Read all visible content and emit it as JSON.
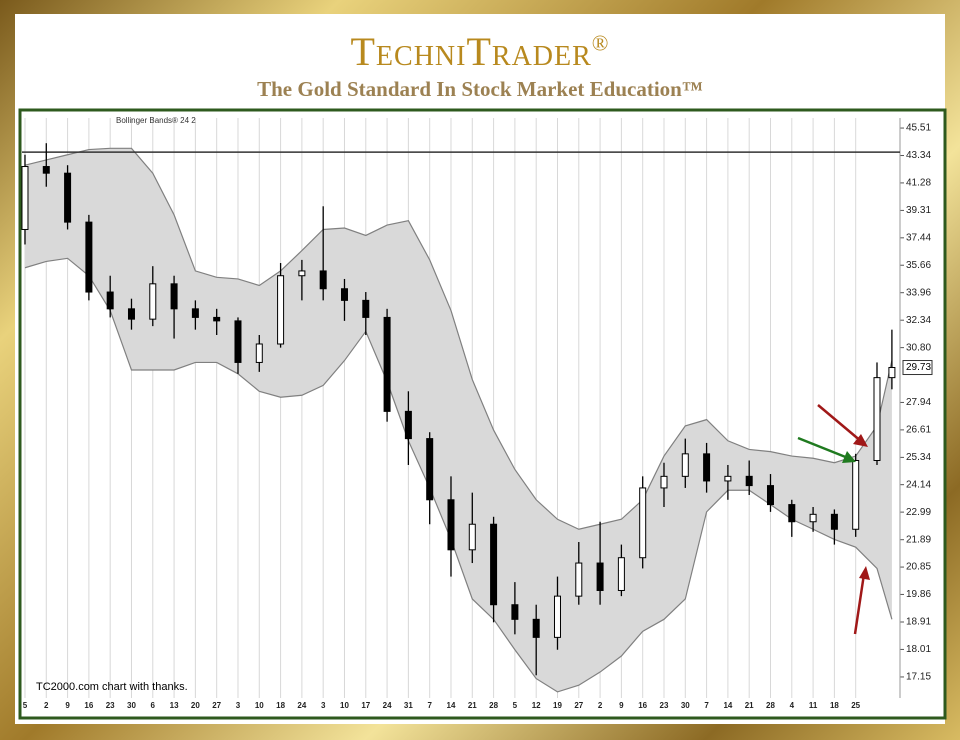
{
  "header": {
    "brand": "TechniTrader",
    "registered": "®",
    "tagline": "The Gold Standard In Stock Market Education™"
  },
  "chart_data": {
    "type": "candlestick",
    "indicator_label": "Bollinger Bands® 24 2",
    "footnote": "TC2000.com  chart with thanks.",
    "log_scale": true,
    "grid": true,
    "up_color": "#ffffff",
    "down_color": "#000000",
    "band_fill": "#d9d9d9",
    "band_stroke": "#808080",
    "horizontal_line": 43.6,
    "last_value": 29.73,
    "xlim": [
      -0.14,
      41.08
    ],
    "ylim": [
      16.52,
      46.33
    ],
    "xticks": [
      {
        "value": 0,
        "label": "5"
      },
      {
        "value": 1,
        "label": "2"
      },
      {
        "value": 2,
        "label": "9"
      },
      {
        "value": 3,
        "label": "16"
      },
      {
        "value": 4,
        "label": "23"
      },
      {
        "value": 5,
        "label": "30"
      },
      {
        "value": 6,
        "label": "6"
      },
      {
        "value": 7,
        "label": "13"
      },
      {
        "value": 8,
        "label": "20"
      },
      {
        "value": 9,
        "label": "27"
      },
      {
        "value": 10,
        "label": "3"
      },
      {
        "value": 11,
        "label": "10"
      },
      {
        "value": 12,
        "label": "18"
      },
      {
        "value": 13,
        "label": "24"
      },
      {
        "value": 14,
        "label": "3"
      },
      {
        "value": 15,
        "label": "10"
      },
      {
        "value": 16,
        "label": "17"
      },
      {
        "value": 17,
        "label": "24"
      },
      {
        "value": 18,
        "label": "31"
      },
      {
        "value": 19,
        "label": "7"
      },
      {
        "value": 20,
        "label": "14"
      },
      {
        "value": 21,
        "label": "21"
      },
      {
        "value": 22,
        "label": "28"
      },
      {
        "value": 23,
        "label": "5"
      },
      {
        "value": 24,
        "label": "12"
      },
      {
        "value": 25,
        "label": "19"
      },
      {
        "value": 26,
        "label": "27"
      },
      {
        "value": 27,
        "label": "2"
      },
      {
        "value": 28,
        "label": "9"
      },
      {
        "value": 29,
        "label": "16"
      },
      {
        "value": 30,
        "label": "23"
      },
      {
        "value": 31,
        "label": "30"
      },
      {
        "value": 32,
        "label": "7"
      },
      {
        "value": 33,
        "label": "14"
      },
      {
        "value": 34,
        "label": "21"
      },
      {
        "value": 35,
        "label": "28"
      },
      {
        "value": 36,
        "label": "4"
      },
      {
        "value": 37,
        "label": "11"
      },
      {
        "value": 38,
        "label": "18"
      },
      {
        "value": 39,
        "label": "25"
      }
    ],
    "yticks": [
      45.51,
      43.34,
      41.28,
      39.31,
      37.44,
      35.66,
      33.96,
      32.34,
      {
        "value": 30.8,
        "label": "30.80"
      },
      27.94,
      26.61,
      25.34,
      24.14,
      22.99,
      21.89,
      20.85,
      19.86,
      18.91,
      18.01,
      17.15
    ],
    "x": [
      0,
      1,
      2,
      3,
      4,
      5,
      6,
      7,
      8,
      9,
      10,
      11,
      12,
      13,
      14,
      15,
      16,
      17,
      18,
      19,
      20,
      21,
      22,
      23,
      24,
      25,
      26,
      27,
      28,
      29,
      30,
      31,
      32,
      33,
      34,
      35,
      36,
      37,
      38,
      39,
      40,
      40.7
    ],
    "open": [
      38,
      42.5,
      42,
      38.5,
      34,
      33,
      32.4,
      34.5,
      33,
      32.5,
      32.3,
      30,
      31,
      35,
      35.3,
      34.2,
      33.5,
      32.5,
      27.5,
      26.2,
      23.5,
      21.5,
      22.5,
      19.5,
      19,
      18.4,
      19.8,
      21,
      20,
      21.2,
      24,
      24.5,
      25.5,
      24.3,
      24.5,
      24.1,
      23.3,
      22.6,
      22.9,
      22.3,
      25.2,
      29.2
    ],
    "high": [
      43.4,
      44.3,
      42.6,
      39,
      35,
      33.6,
      35.6,
      35,
      33.5,
      33,
      32.5,
      31.5,
      35.8,
      36,
      39.6,
      34.8,
      34,
      33,
      28.5,
      26.5,
      24.5,
      23.8,
      22.8,
      20.3,
      19.5,
      20.5,
      21.8,
      22.6,
      21.7,
      24.5,
      25.1,
      26.2,
      26,
      25,
      25.2,
      24.6,
      23.5,
      23.2,
      23.1,
      25.5,
      30,
      31.8
    ],
    "low": [
      37,
      41,
      38,
      33.5,
      32.5,
      31.8,
      32,
      31.3,
      31.8,
      31.5,
      29.4,
      29.5,
      30.8,
      33.5,
      33.5,
      32.3,
      31.5,
      27,
      25,
      22.5,
      20.5,
      21,
      18.9,
      18.5,
      17.2,
      18,
      19.5,
      19.5,
      19.8,
      20.8,
      23.2,
      24,
      23.8,
      23.5,
      23.7,
      23,
      22,
      22.2,
      21.7,
      22,
      25,
      28.6
    ],
    "close": [
      42.5,
      42,
      38.5,
      34,
      33,
      32.4,
      34.5,
      33,
      32.5,
      32.3,
      30,
      31,
      35,
      35.3,
      34.2,
      33.5,
      32.5,
      27.5,
      26.2,
      23.5,
      21.5,
      22.5,
      19.5,
      19,
      18.4,
      19.8,
      21,
      20,
      21.2,
      24,
      24.5,
      25.5,
      24.3,
      24.5,
      24.1,
      23.3,
      22.6,
      22.9,
      22.3,
      25.2,
      29.2,
      29.73
    ],
    "upper_band": [
      42.6,
      43.0,
      43.4,
      43.8,
      43.9,
      43.9,
      42.0,
      39.0,
      35.3,
      34.9,
      34.8,
      34.4,
      35.3,
      36.6,
      38.0,
      38.1,
      37.6,
      38.3,
      38.6,
      36.0,
      32.9,
      29.1,
      26.6,
      24.8,
      23.5,
      22.7,
      22.3,
      22.5,
      22.7,
      23.5,
      25.4,
      26.8,
      27.1,
      26.1,
      25.7,
      25.6,
      25.4,
      25.3,
      25.1,
      25.4,
      26.8,
      30.1
    ],
    "lower_band": [
      35.5,
      35.9,
      36.1,
      35.0,
      32.9,
      29.6,
      29.6,
      29.6,
      30.0,
      30.0,
      29.4,
      28.5,
      28.2,
      28.3,
      28.8,
      30.1,
      31.7,
      29.0,
      26.1,
      24.0,
      21.9,
      19.7,
      19.0,
      18.0,
      17.1,
      16.7,
      16.9,
      17.3,
      17.8,
      18.6,
      19.0,
      19.7,
      23.0,
      23.9,
      23.9,
      23.3,
      22.7,
      22.3,
      21.9,
      21.6,
      20.8,
      19.0
    ]
  }
}
